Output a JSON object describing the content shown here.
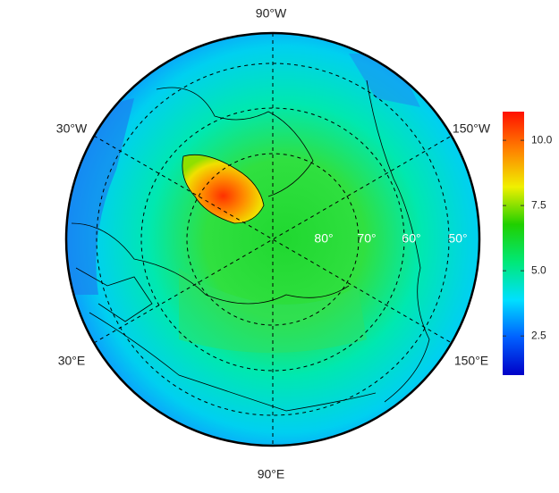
{
  "map": {
    "longitude_labels": [
      "90°W",
      "30°W",
      "150°W",
      "30°E",
      "150°E",
      "90°E"
    ],
    "latitude_labels": [
      "80°",
      "70°",
      "60°",
      "50°"
    ]
  },
  "colorbar": {
    "lim": [
      1,
      11.1
    ],
    "ticks": [
      2.5,
      {
        "value": 5,
        "label": "5.0"
      },
      7.5,
      {
        "value": 10,
        "label": "10.0"
      }
    ],
    "colors": [
      "#0000c8",
      "#0060ff",
      "#00e0ff",
      "#00e878",
      "#20d000",
      "#f0f000",
      "#ff8000",
      "#ff1000"
    ]
  }
}
